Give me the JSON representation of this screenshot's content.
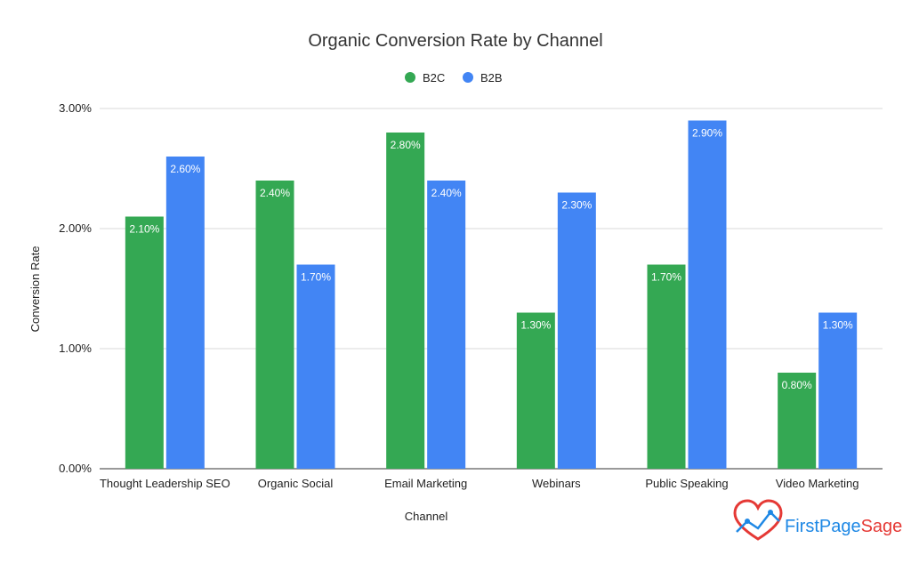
{
  "chart_data": {
    "type": "bar",
    "title": "Organic Conversion Rate by Channel",
    "xlabel": "Channel",
    "ylabel": "Conversion Rate",
    "categories": [
      "Thought Leadership SEO",
      "Organic Social",
      "Email Marketing",
      "Webinars",
      "Public Speaking",
      "Video Marketing"
    ],
    "series": [
      {
        "name": "B2C",
        "color": "#34a853",
        "values": [
          2.1,
          2.4,
          2.8,
          1.3,
          1.7,
          0.8
        ],
        "labels": [
          "2.10%",
          "2.40%",
          "2.80%",
          "1.30%",
          "1.70%",
          "0.80%"
        ]
      },
      {
        "name": "B2B",
        "color": "#4285f4",
        "values": [
          2.6,
          1.7,
          2.4,
          2.3,
          2.9,
          1.3
        ],
        "labels": [
          "2.60%",
          "1.70%",
          "2.40%",
          "2.30%",
          "2.90%",
          "1.30%"
        ]
      }
    ],
    "ylim": [
      0,
      3
    ],
    "yticks": [
      0,
      1,
      2,
      3
    ],
    "ytick_labels": [
      "0.00%",
      "1.00%",
      "2.00%",
      "3.00%"
    ],
    "grid": true,
    "legend_position": "top-center"
  },
  "brand": {
    "name": "FirstPageSage",
    "name_first": "FirstPage",
    "name_second": "Sage",
    "color_primary": "#e53935",
    "color_secondary": "#1e88e5"
  }
}
